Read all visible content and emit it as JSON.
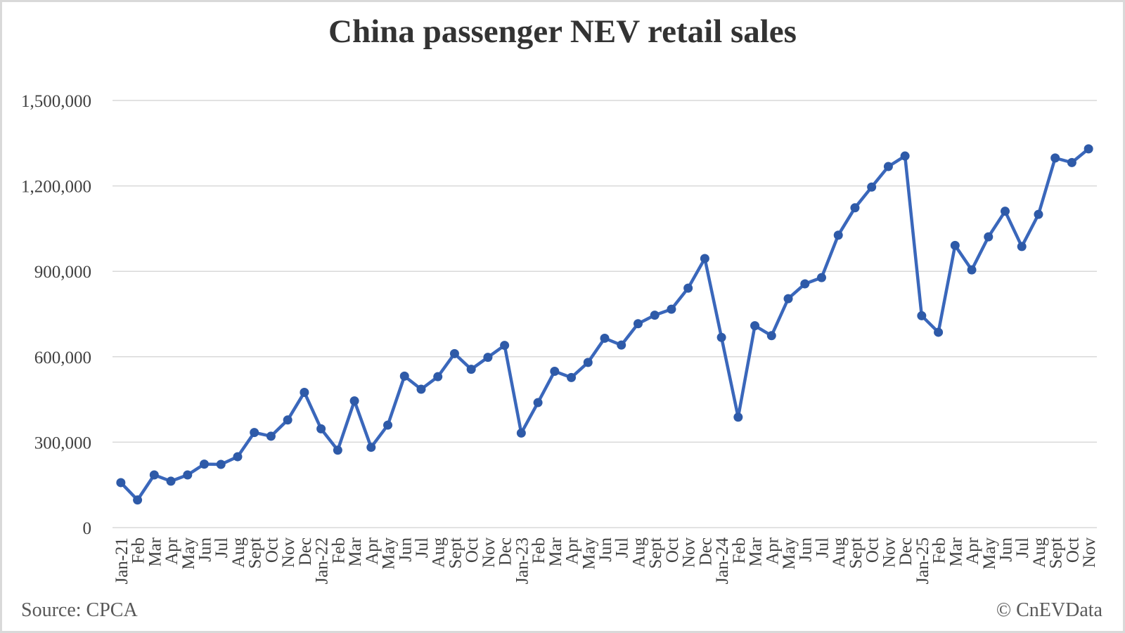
{
  "page": {
    "background": "#ffffff",
    "frame_color": "#d9d9d9"
  },
  "chart_data": {
    "type": "line",
    "title": "China passenger NEV retail sales",
    "source": "Source: CPCA",
    "copyright": "© CnEVData",
    "legend": "none",
    "grid": "horizontal",
    "ylim": [
      0,
      1500000
    ],
    "ytick_interval": 300000,
    "ytick_labels": [
      "0",
      "300,000",
      "600,000",
      "900,000",
      "1,200,000",
      "1,500,000"
    ],
    "x": [
      "Jan-21",
      "Feb",
      "Mar",
      "Apr",
      "May",
      "Jun",
      "Jul",
      "Aug",
      "Sept",
      "Oct",
      "Nov",
      "Dec",
      "Jan-22",
      "Feb",
      "Mar",
      "Apr",
      "May",
      "Jun",
      "Jul",
      "Aug",
      "Sept",
      "Oct",
      "Nov",
      "Dec",
      "Jan-23",
      "Feb",
      "Mar",
      "Apr",
      "May",
      "Jun",
      "Jul",
      "Aug",
      "Sept",
      "Oct",
      "Nov",
      "Dec",
      "Jan-24",
      "Feb",
      "Mar",
      "Apr",
      "May",
      "Jun",
      "Jul",
      "Aug",
      "Sept",
      "Oct",
      "Nov",
      "Dec",
      "Jan-25",
      "Feb",
      "Mar",
      "Apr",
      "May",
      "Jun",
      "Jul",
      "Aug",
      "Sept",
      "Oct",
      "Nov"
    ],
    "series": [
      {
        "name": "China passenger NEV retail sales",
        "values": [
          158000,
          97000,
          185000,
          163000,
          185000,
          223000,
          222000,
          249000,
          334000,
          321000,
          378000,
          475000,
          347000,
          272000,
          445000,
          282000,
          360000,
          532000,
          486000,
          530000,
          611000,
          556000,
          598000,
          640000,
          332000,
          439000,
          549000,
          527000,
          580000,
          665000,
          641000,
          716000,
          746000,
          767000,
          841000,
          945000,
          668000,
          388000,
          709000,
          674000,
          804000,
          856000,
          878000,
          1027000,
          1123000,
          1196000,
          1268000,
          1305000,
          744000,
          686000,
          991000,
          905000,
          1021000,
          1111000,
          987000,
          1100000,
          1298000,
          1282000,
          1330000
        ]
      }
    ],
    "line_color": "#3a67bb",
    "marker_color": "#2e5aa8",
    "gridline_color": "#d9d9d9",
    "axis_text_color": "#404040",
    "title_color": "#333333",
    "footer_text_color": "#595959"
  }
}
